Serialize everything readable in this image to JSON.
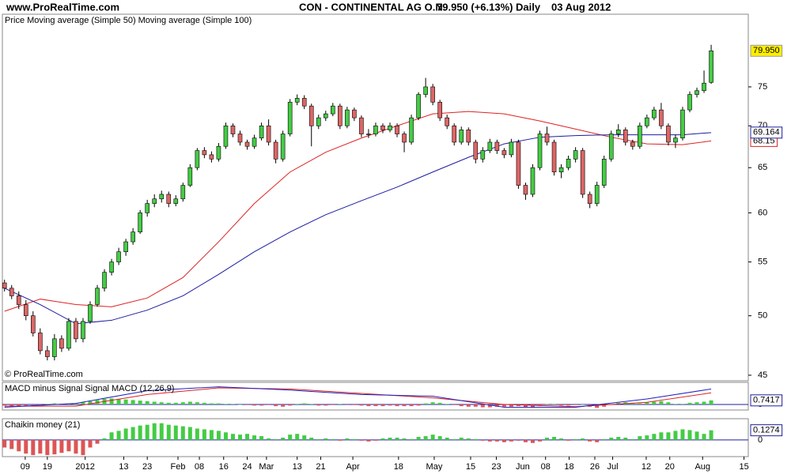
{
  "header": {
    "site": "www.ProRealTime.com",
    "instrument": "CON - CONTINENTAL AG O.N.",
    "quote": "79.950 (+6.13%)",
    "period": "Daily",
    "date": "03 Aug 2012"
  },
  "watermark": "© ProRealTime.com",
  "chart_data": [
    {
      "type": "candlestick",
      "legend_label": "Price",
      "log": true,
      "ylim": [
        44.56,
        85.3
      ],
      "yticks": [
        45,
        50,
        55,
        60,
        65,
        70,
        75
      ],
      "xlim": [
        -0.3,
        104.2
      ],
      "xticks": [
        {
          "value": 2.9,
          "label": "09"
        },
        {
          "value": 6,
          "label": "19"
        },
        {
          "value": 11.3,
          "label": "2012"
        },
        {
          "value": 16.7,
          "label": "13"
        },
        {
          "value": 20,
          "label": "23"
        },
        {
          "value": 24.3,
          "label": "Feb"
        },
        {
          "value": 27.3,
          "label": "08"
        },
        {
          "value": 30.7,
          "label": "16"
        },
        {
          "value": 34,
          "label": "24"
        },
        {
          "value": 36.7,
          "label": "Mar"
        },
        {
          "value": 41,
          "label": "13"
        },
        {
          "value": 44.3,
          "label": "21"
        },
        {
          "value": 48.8,
          "label": "Apr"
        },
        {
          "value": 55.2,
          "label": "18"
        },
        {
          "value": 60.2,
          "label": "May"
        },
        {
          "value": 65.3,
          "label": "15"
        },
        {
          "value": 68.9,
          "label": "23"
        },
        {
          "value": 72.6,
          "label": "Jun"
        },
        {
          "value": 75.8,
          "label": "08"
        },
        {
          "value": 79.1,
          "label": "18"
        },
        {
          "value": 82.7,
          "label": "26"
        },
        {
          "value": 85.2,
          "label": "Jul"
        },
        {
          "value": 89.9,
          "label": "12"
        },
        {
          "value": 93.2,
          "label": "20"
        },
        {
          "value": 97.8,
          "label": "Aug"
        },
        {
          "value": 103.6,
          "label": "15"
        }
      ],
      "up_color": "#44cc44",
      "down_color": "#dd6666",
      "candles": [
        [
          53,
          53.3,
          52.2,
          52.5
        ],
        [
          52.5,
          52.8,
          51.5,
          51.8
        ],
        [
          51.8,
          52.2,
          50.6,
          51
        ],
        [
          51,
          51.4,
          49.6,
          50
        ],
        [
          50,
          50.4,
          48.2,
          48.5
        ],
        [
          48.5,
          48.9,
          46.7,
          47
        ],
        [
          47,
          47.4,
          46.2,
          46.5
        ],
        [
          46.5,
          48.4,
          46.2,
          48
        ],
        [
          48,
          48.3,
          46.9,
          47.2
        ],
        [
          47.2,
          49.8,
          47,
          49.5
        ],
        [
          49.5,
          49.8,
          47.7,
          48
        ],
        [
          48,
          49.8,
          47.7,
          49.5
        ],
        [
          49.5,
          51.3,
          49.3,
          51
        ],
        [
          51,
          52.8,
          50.8,
          52.5
        ],
        [
          52.5,
          54.3,
          52.2,
          54
        ],
        [
          54,
          55.3,
          53.7,
          55
        ],
        [
          55,
          56.4,
          54.7,
          56
        ],
        [
          56,
          57.3,
          55.6,
          57
        ],
        [
          57,
          58.4,
          56.7,
          58
        ],
        [
          58,
          60.3,
          57.8,
          60
        ],
        [
          60,
          61.4,
          59.6,
          61
        ],
        [
          61,
          62,
          60.6,
          61.5
        ],
        [
          61.5,
          62.4,
          61.1,
          62
        ],
        [
          62,
          62.3,
          60.6,
          61
        ],
        [
          61,
          61.9,
          60.7,
          61.5
        ],
        [
          61.5,
          63.3,
          61.2,
          63
        ],
        [
          63,
          65.4,
          62.8,
          65
        ],
        [
          65,
          67.3,
          64.7,
          67
        ],
        [
          67,
          67.4,
          66.1,
          66.5
        ],
        [
          66.5,
          66.9,
          65.6,
          66
        ],
        [
          66,
          67.9,
          65.7,
          67.5
        ],
        [
          67.5,
          70.4,
          67.2,
          70
        ],
        [
          70,
          70.3,
          68.6,
          69
        ],
        [
          69,
          69.4,
          67.6,
          68
        ],
        [
          68,
          68.3,
          67.1,
          67.5
        ],
        [
          67.5,
          68.9,
          67.2,
          68.5
        ],
        [
          68.5,
          70.4,
          68.2,
          70
        ],
        [
          70,
          70.8,
          67.6,
          68
        ],
        [
          68,
          68.3,
          65.5,
          66
        ],
        [
          66,
          69.4,
          65.7,
          69
        ],
        [
          69,
          73.4,
          68.7,
          73
        ],
        [
          73,
          74,
          72.6,
          73.5
        ],
        [
          73.5,
          73.9,
          72.1,
          72.5
        ],
        [
          72.5,
          72.8,
          67.5,
          70
        ],
        [
          70,
          71.4,
          69.6,
          71
        ],
        [
          71,
          71.9,
          70.6,
          71.5
        ],
        [
          71.5,
          72.9,
          71.2,
          72.5
        ],
        [
          72.5,
          72.8,
          69.6,
          70
        ],
        [
          70,
          72.4,
          69.7,
          72
        ],
        [
          72,
          72.3,
          70.6,
          71
        ],
        [
          71,
          71.3,
          68.6,
          69
        ],
        [
          69,
          69.6,
          68.5,
          69
        ],
        [
          69,
          70.4,
          68.7,
          70
        ],
        [
          70,
          70.3,
          69.1,
          69.5
        ],
        [
          69.5,
          70.4,
          69.2,
          70
        ],
        [
          70,
          70.3,
          68.6,
          69
        ],
        [
          69,
          69.3,
          66.8,
          68
        ],
        [
          68,
          71.4,
          67.7,
          71
        ],
        [
          71,
          74.3,
          70.7,
          74
        ],
        [
          74,
          76.2,
          73.6,
          75
        ],
        [
          75,
          75.4,
          72.6,
          73
        ],
        [
          73,
          73.3,
          70.6,
          71
        ],
        [
          71,
          71.4,
          69.6,
          70
        ],
        [
          70,
          70.3,
          67.6,
          68
        ],
        [
          68,
          69.9,
          67.7,
          69.5
        ],
        [
          69.5,
          69.8,
          67.6,
          68
        ],
        [
          68,
          68.3,
          65.5,
          66
        ],
        [
          66,
          67.4,
          65.6,
          67
        ],
        [
          67,
          68.4,
          66.7,
          68
        ],
        [
          68,
          68.3,
          66.6,
          67
        ],
        [
          67,
          67.3,
          66.1,
          66.5
        ],
        [
          66.5,
          68.4,
          66.2,
          68
        ],
        [
          68,
          68.3,
          62.6,
          63
        ],
        [
          63,
          63.3,
          61.4,
          62
        ],
        [
          62,
          65.4,
          61.7,
          65
        ],
        [
          65,
          69.4,
          64.7,
          69
        ],
        [
          69,
          69.9,
          67.6,
          68
        ],
        [
          68,
          68.3,
          64.1,
          64.5
        ],
        [
          64.5,
          65.4,
          63.8,
          65
        ],
        [
          65,
          66.4,
          64.7,
          66
        ],
        [
          66,
          67.4,
          65.6,
          67
        ],
        [
          67,
          67.3,
          61.6,
          62
        ],
        [
          62,
          62.3,
          60.5,
          61
        ],
        [
          61,
          63.4,
          60.7,
          63
        ],
        [
          63,
          66.4,
          62.7,
          66
        ],
        [
          66,
          69.4,
          65.7,
          69
        ],
        [
          69,
          70.2,
          68.6,
          69.5
        ],
        [
          69.5,
          69.8,
          67.6,
          68
        ],
        [
          68,
          68.3,
          67.1,
          67.5
        ],
        [
          67.5,
          70.4,
          67.2,
          70
        ],
        [
          70,
          71.4,
          69.7,
          71
        ],
        [
          71,
          72.4,
          70.7,
          72
        ],
        [
          72,
          72.9,
          69.6,
          70
        ],
        [
          70,
          70.3,
          67.6,
          68
        ],
        [
          68,
          68.9,
          67.3,
          68.5
        ],
        [
          68.5,
          72.4,
          68.2,
          72
        ],
        [
          72,
          74.4,
          71.7,
          74
        ],
        [
          74,
          74.9,
          73.6,
          74.5
        ],
        [
          74.5,
          77.2,
          74.2,
          75.5
        ],
        [
          75.6,
          80.8,
          75.4,
          79.95
        ]
      ],
      "last_value_label": "79.950",
      "series": [
        {
          "name": "Moving average (Simple 50)",
          "color": "#dd2222",
          "x": [
            0,
            5,
            10,
            15,
            20,
            25,
            30,
            35,
            40,
            45,
            50,
            55,
            60,
            65,
            70,
            75,
            80,
            85,
            90,
            95,
            99
          ],
          "values": [
            50.4,
            51.5,
            51,
            50.8,
            51.6,
            53.5,
            57,
            61,
            64.5,
            66.8,
            68.5,
            70,
            71.5,
            71.8,
            71.5,
            70.6,
            69.6,
            68.6,
            67.8,
            67.7,
            68.15
          ],
          "last_value_label": "68.15"
        },
        {
          "name": "Moving average (Simple 100)",
          "color": "#1c1ca0",
          "x": [
            0,
            5,
            10,
            15,
            20,
            25,
            30,
            35,
            40,
            45,
            50,
            55,
            60,
            65,
            70,
            75,
            80,
            85,
            90,
            95,
            99
          ],
          "values": [
            52.5,
            51,
            49.3,
            49.6,
            50.5,
            51.8,
            53.8,
            56,
            58,
            59.8,
            61.3,
            62.8,
            64.5,
            66.2,
            67.8,
            68.6,
            68.8,
            68.9,
            68.9,
            68.9,
            69.164
          ],
          "last_value_label": "69.164"
        }
      ]
    },
    {
      "type": "macd",
      "ylim": [
        -1,
        4
      ],
      "yticks": [
        0
      ],
      "series": [
        {
          "name": "MACD minus Signal",
          "kind": "bar",
          "up_color": "#44cc44",
          "down_color": "#dd5555",
          "last_value_label": "0.7417",
          "values": [
            -0.2,
            -0.3,
            -0.4,
            -0.3,
            -0.2,
            -0.1,
            0.1,
            0.2,
            0.1,
            0.2,
            0.2,
            0.4,
            0.6,
            0.8,
            1,
            1.1,
            1,
            0.9,
            0.8,
            0.7,
            0.6,
            0.5,
            0.4,
            0.3,
            0.3,
            0.4,
            0.5,
            0.4,
            0.3,
            0.2,
            0.2,
            0.1,
            0.1,
            0,
            -0.1,
            -0.2,
            -0.2,
            -0.1,
            -0.3,
            -0.4,
            -0.2,
            0.1,
            0.2,
            0.1,
            -0.2,
            -0.2,
            -0.1,
            0.1,
            -0.1,
            -0.1,
            -0.2,
            -0.3,
            -0.3,
            -0.3,
            -0.2,
            -0.3,
            -0.3,
            -0.3,
            -0.2,
            0.2,
            0.4,
            0.3,
            0.1,
            -0.1,
            -0.3,
            -0.4,
            -0.4,
            -0.5,
            -0.5,
            -0.4,
            -0.4,
            -0.4,
            -0.3,
            -0.5,
            -0.6,
            -0.3,
            0.1,
            0.1,
            -0.2,
            -0.2,
            -0.1,
            0,
            -0.4,
            -0.6,
            -0.4,
            -0.1,
            0.3,
            0.4,
            0.3,
            0.2,
            0.4,
            0.5,
            0.6,
            0.4,
            0.1,
            0.1,
            0.3,
            0.4,
            0.5,
            0.7417
          ]
        },
        {
          "name": "Signal",
          "kind": "line",
          "color": "#dd2222",
          "x": [
            0,
            10,
            20,
            30,
            40,
            50,
            60,
            70,
            80,
            90,
            99
          ],
          "values": [
            -0.3,
            -0.3,
            1.8,
            3,
            2.8,
            2,
            1.2,
            0,
            -0.4,
            0.4,
            2.1
          ]
        },
        {
          "name": "MACD (12,26,9)",
          "kind": "line",
          "color": "#2020c0",
          "x": [
            0,
            10,
            20,
            30,
            40,
            50,
            60,
            70,
            80,
            90,
            99
          ],
          "values": [
            -0.5,
            0.2,
            2.5,
            3.2,
            2.6,
            1.8,
            1.5,
            -0.5,
            -0.5,
            1,
            2.8
          ]
        }
      ]
    },
    {
      "type": "bar",
      "ylim": [
        -0.22,
        0.28
      ],
      "yticks": [
        0
      ],
      "series": [
        {
          "name": "Chaikin money (21)",
          "kind": "bar",
          "up_color": "#44cc44",
          "down_color": "#dd5555",
          "last_value_label": "0.1274",
          "values": [
            -0.1,
            -0.12,
            -0.15,
            -0.18,
            -0.2,
            -0.18,
            -0.2,
            -0.19,
            -0.17,
            -0.15,
            -0.18,
            -0.2,
            -0.1,
            -0.05,
            0.02,
            0.1,
            0.12,
            0.15,
            0.17,
            0.19,
            0.2,
            0.22,
            0.22,
            0.2,
            0.19,
            0.18,
            0.17,
            0.15,
            0.14,
            0.13,
            0.12,
            0.1,
            0.08,
            0.07,
            0.08,
            0.06,
            0.05,
            0.02,
            0.01,
            0.03,
            0.07,
            0.08,
            0.06,
            0.03,
            0.01,
            0.02,
            0.01,
            -0.01,
            0.02,
            0.01,
            -0.01,
            -0.02,
            -0.01,
            0.02,
            0.03,
            0.03,
            0.02,
            0.01,
            0.04,
            0.05,
            0.07,
            0.05,
            0.03,
            0.01,
            0.03,
            0.02,
            0.01,
            -0.01,
            -0.02,
            -0.02,
            -0.03,
            -0.02,
            -0.01,
            -0.03,
            -0.04,
            -0.02,
            0.03,
            0.04,
            0.02,
            -0.01,
            0.01,
            0.02,
            -0.02,
            -0.03,
            0.01,
            0.03,
            0.04,
            0.03,
            0.01,
            0.05,
            0.06,
            0.08,
            0.1,
            0.1,
            0.12,
            0.14,
            0.13,
            0.11,
            0.08,
            0.1274
          ]
        }
      ]
    }
  ]
}
